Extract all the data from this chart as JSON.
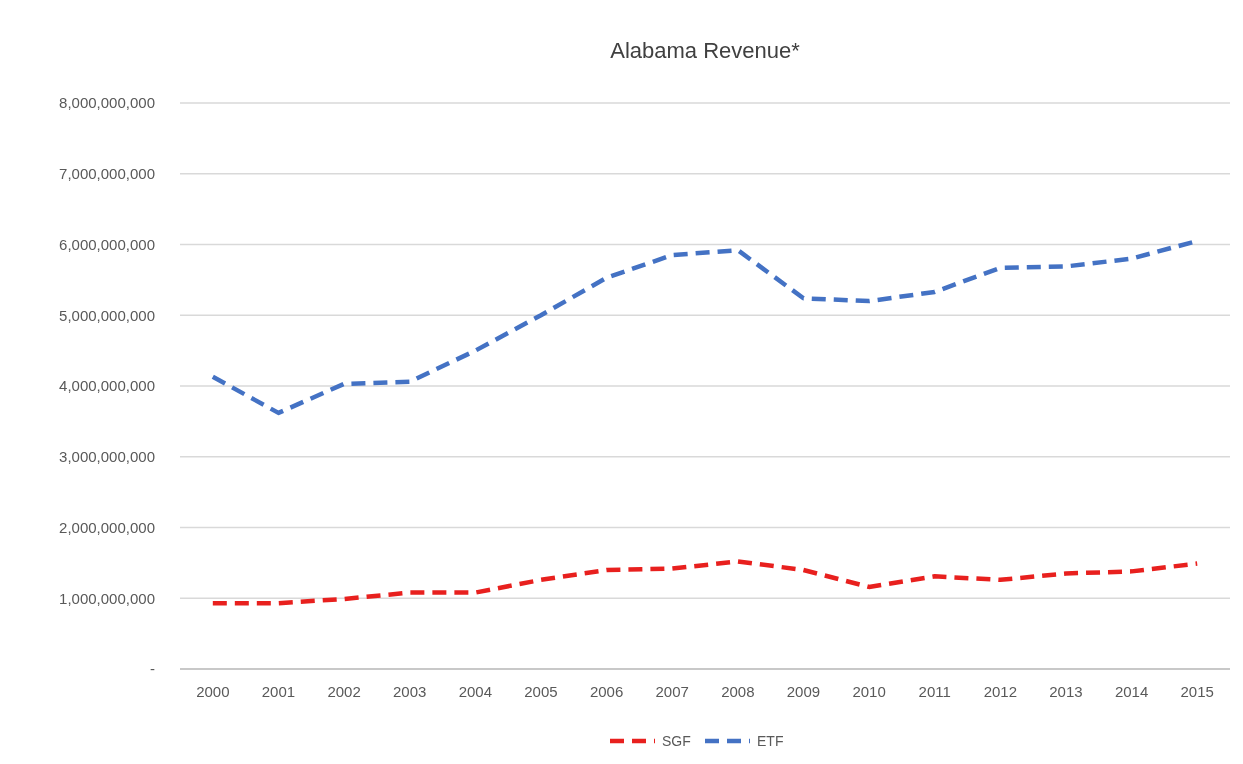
{
  "chart_data": {
    "type": "line",
    "title": "Alabama Revenue*",
    "categories": [
      "2000",
      "2001",
      "2002",
      "2003",
      "2004",
      "2005",
      "2006",
      "2007",
      "2008",
      "2009",
      "2010",
      "2011",
      "2012",
      "2013",
      "2014",
      "2015"
    ],
    "series": [
      {
        "name": "SGF",
        "color": "#e8201e",
        "values": [
          930000000,
          930000000,
          990000000,
          1080000000,
          1080000000,
          1260000000,
          1400000000,
          1420000000,
          1520000000,
          1400000000,
          1160000000,
          1310000000,
          1260000000,
          1350000000,
          1380000000,
          1490000000
        ]
      },
      {
        "name": "ETF",
        "color": "#4472c4",
        "values": [
          4130000000,
          3620000000,
          4030000000,
          4060000000,
          4500000000,
          5000000000,
          5530000000,
          5850000000,
          5920000000,
          5240000000,
          5200000000,
          5330000000,
          5670000000,
          5690000000,
          5800000000,
          6050000000
        ]
      }
    ],
    "ylim": [
      0,
      8000000000
    ],
    "yticks": [
      {
        "value": 0,
        "label": "-"
      },
      {
        "value": 1000000000,
        "label": "1,000,000,000"
      },
      {
        "value": 2000000000,
        "label": "2,000,000,000"
      },
      {
        "value": 3000000000,
        "label": "3,000,000,000"
      },
      {
        "value": 4000000000,
        "label": "4,000,000,000"
      },
      {
        "value": 5000000000,
        "label": "5,000,000,000"
      },
      {
        "value": 6000000000,
        "label": "6,000,000,000"
      },
      {
        "value": 7000000000,
        "label": "7,000,000,000"
      },
      {
        "value": 8000000000,
        "label": "8,000,000,000"
      }
    ],
    "grid": "y",
    "legend": "bottom",
    "line_style": "dashed",
    "marker": "none"
  }
}
